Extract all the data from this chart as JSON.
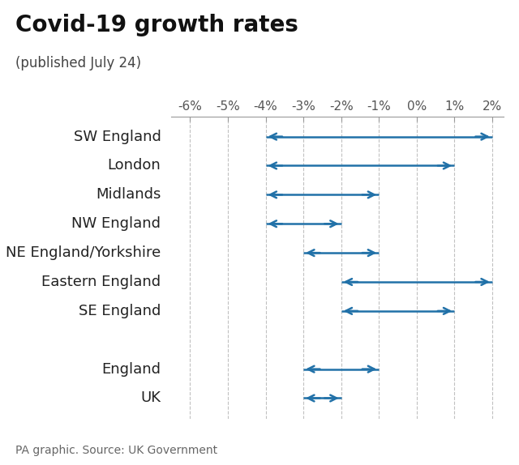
{
  "title": "Covid-19 growth rates",
  "subtitle": "(published July 24)",
  "source": "PA graphic. Source: UK Government",
  "xlim": [
    -6.5,
    2.3
  ],
  "xticks": [
    -6,
    -5,
    -4,
    -3,
    -2,
    -1,
    0,
    1,
    2
  ],
  "xticklabels": [
    "-6%",
    "-5%",
    "-4%",
    "-3%",
    "-2%",
    "-1%",
    "0%",
    "1%",
    "2%"
  ],
  "regions": [
    "SW England",
    "London",
    "Midlands",
    "NW England",
    "NE England/Yorkshire",
    "Eastern England",
    "SE England",
    "",
    "England",
    "UK"
  ],
  "ranges": [
    [
      -4,
      2
    ],
    [
      -4,
      1
    ],
    [
      -4,
      -1
    ],
    [
      -4,
      -2
    ],
    [
      -3,
      -1
    ],
    [
      -2,
      2
    ],
    [
      -2,
      1
    ],
    [
      null,
      null
    ],
    [
      -3,
      -1
    ],
    [
      -3,
      -2
    ]
  ],
  "arrow_color": "#2171a8",
  "grid_color": "#bbbbbb",
  "title_fontsize": 20,
  "subtitle_fontsize": 12,
  "label_fontsize": 13,
  "tick_fontsize": 11,
  "source_fontsize": 10,
  "background_color": "#ffffff"
}
